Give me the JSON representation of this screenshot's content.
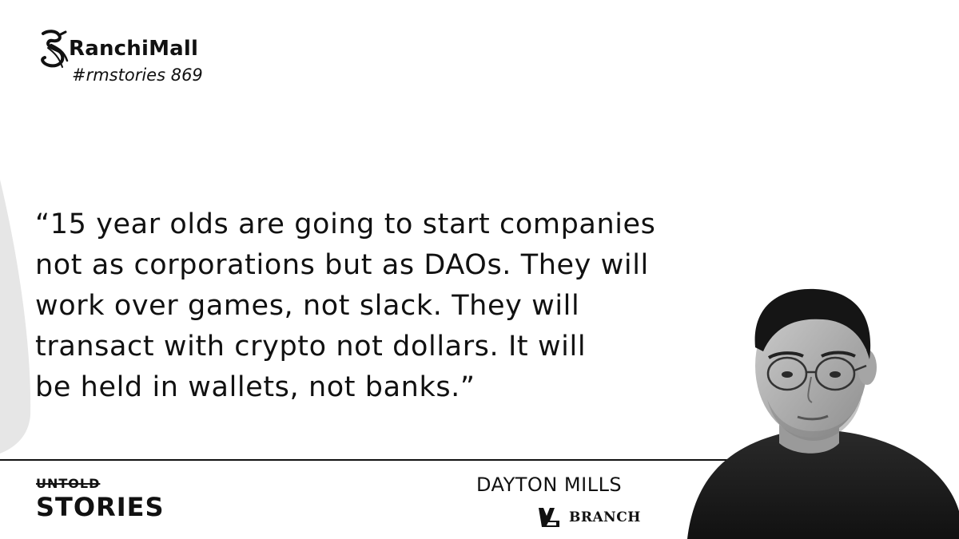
{
  "brand": {
    "name": "RanchiMall",
    "hashtag": "#rmstories 869",
    "logo_icon": "seahorse-logo-icon"
  },
  "quote": {
    "lines": [
      "“15 year olds are going to start companies",
      "not as corporations but as DAOs. They will",
      "work over games, not slack. They will",
      "transact with crypto not dollars. It will",
      "be held in wallets, not banks.”"
    ]
  },
  "series": {
    "top": "UNTOLD",
    "bottom": "STORIES"
  },
  "speaker": {
    "name": "DAYTON MILLS",
    "company": "BRANCH",
    "company_icon": "branch-logo-icon"
  },
  "colors": {
    "text": "#111111",
    "background": "#ffffff",
    "accent_grey": "#e6e6e6"
  }
}
